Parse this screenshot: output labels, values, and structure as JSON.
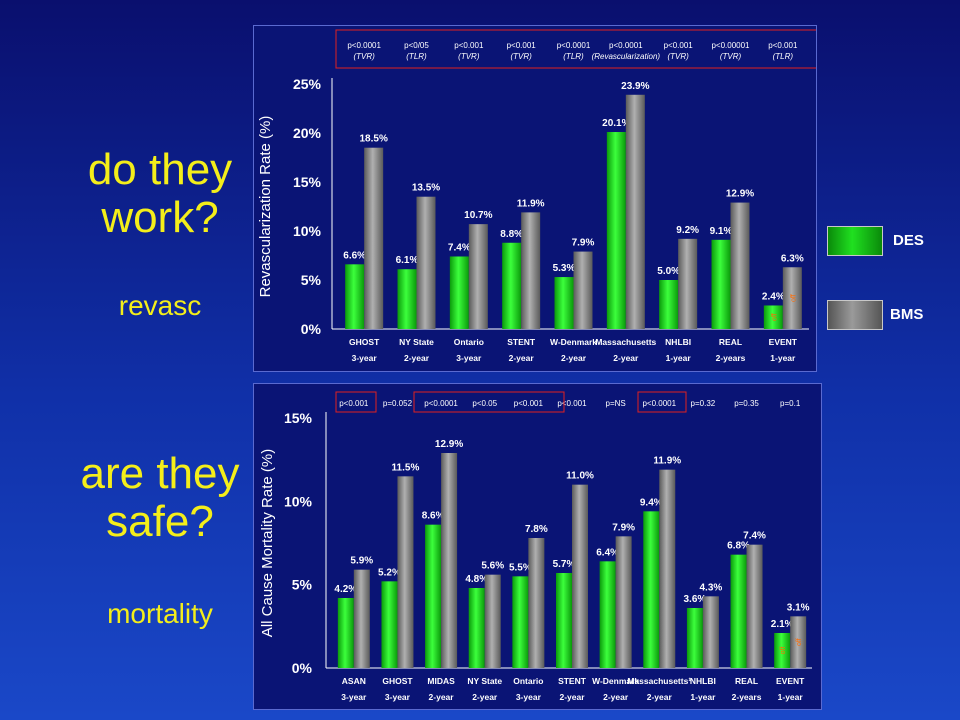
{
  "left": {
    "q1": "do they work?",
    "q1_sub": "revasc",
    "q2": "are they safe?",
    "q2_sub": "mortality"
  },
  "legend": {
    "items": [
      {
        "label": "DES",
        "color": "#20e020"
      },
      {
        "label": "BMS",
        "color": "#9a9a9a"
      }
    ]
  },
  "chart_data": [
    {
      "type": "bar",
      "ylabel": "Revascularization Rate (%)",
      "ylim": [
        0,
        25
      ],
      "yticks": [
        "0%",
        "5%",
        "10%",
        "15%",
        "20%",
        "25%"
      ],
      "categories": [
        "GHOST",
        "NY State",
        "Ontario",
        "STENT",
        "W-Denmark",
        "Massachusetts",
        "NHLBI",
        "REAL",
        "EVENT"
      ],
      "periods": [
        "3-year",
        "2-year",
        "3-year",
        "2-year",
        "2-year",
        "2-year",
        "1-year",
        "2-years",
        "1-year"
      ],
      "series": [
        {
          "name": "DES",
          "values": [
            6.6,
            6.1,
            7.4,
            8.8,
            5.3,
            20.1,
            5.0,
            9.1,
            2.4
          ],
          "labels": [
            "6.6%",
            "6.1%",
            "7.4%",
            "8.8%",
            "5.3%",
            "20.1%",
            "5.0%",
            "9.1%",
            "2.4%"
          ]
        },
        {
          "name": "BMS",
          "values": [
            18.5,
            13.5,
            10.7,
            11.9,
            7.9,
            23.9,
            9.2,
            12.9,
            6.3
          ],
          "labels": [
            "18.5%",
            "13.5%",
            "10.7%",
            "11.9%",
            "7.9%",
            "23.9%",
            "9.2%",
            "12.9%",
            "6.3%"
          ]
        }
      ],
      "pvalues": [
        {
          "p": "p<0.0001",
          "note": "(TVR)"
        },
        {
          "p": "p<0/05",
          "note": "(TLR)"
        },
        {
          "p": "p<0.001",
          "note": "(TVR)"
        },
        {
          "p": "p<0.001",
          "note": "(TVR)"
        },
        {
          "p": "p<0.0001",
          "note": "(TLR)"
        },
        {
          "p": "p<0.0001",
          "note": "(Revascularization)"
        },
        {
          "p": "p<0.001",
          "note": "(TVR)"
        },
        {
          "p": "p<0.00001",
          "note": "(TVR)"
        },
        {
          "p": "p<0.001",
          "note": "(TLR)"
        }
      ],
      "annot": "off"
    },
    {
      "type": "bar",
      "ylabel": "All Cause Mortality Rate (%)",
      "ylim": [
        0,
        15
      ],
      "yticks": [
        "0%",
        "5%",
        "10%",
        "15%"
      ],
      "categories": [
        "ASAN",
        "GHOST",
        "MIDAS",
        "NY State",
        "Ontario",
        "STENT",
        "W-Denmark",
        "Massachusetts¹",
        "NHLBI",
        "REAL",
        "EVENT"
      ],
      "periods": [
        "3-year",
        "3-year",
        "2-year",
        "2-year",
        "3-year",
        "2-year",
        "2-year",
        "2-year",
        "1-year",
        "2-years",
        "1-year"
      ],
      "series": [
        {
          "name": "DES",
          "values": [
            4.2,
            5.2,
            8.6,
            4.8,
            5.5,
            5.7,
            6.4,
            9.4,
            3.6,
            6.8,
            2.1
          ],
          "labels": [
            "4.2%",
            "5.2%",
            "8.6%",
            "4.8%",
            "5.5%",
            "5.7%",
            "6.4%",
            "9.4%",
            "3.6%",
            "6.8%",
            "2.1%"
          ]
        },
        {
          "name": "BMS",
          "values": [
            5.9,
            11.5,
            12.9,
            5.6,
            7.8,
            11.0,
            7.9,
            11.9,
            4.3,
            7.4,
            3.1
          ],
          "labels": [
            "5.9%",
            "11.5%",
            "12.9%",
            "5.6%",
            "7.8%",
            "11.0%",
            "7.9%",
            "11.9%",
            "4.3%",
            "7.4%",
            "3.1%"
          ]
        }
      ],
      "pvalues": [
        {
          "p": "p<0.001"
        },
        {
          "p": "p=0.052"
        },
        {
          "p": "p<0.0001"
        },
        {
          "p": "p<0.05"
        },
        {
          "p": "p<0.001"
        },
        {
          "p": "p<0.001"
        },
        {
          "p": "p=NS"
        },
        {
          "p": "p<0.0001"
        },
        {
          "p": "p=0.32"
        },
        {
          "p": "p=0.35"
        },
        {
          "p": "p=0.1"
        }
      ],
      "annot": "off"
    }
  ]
}
